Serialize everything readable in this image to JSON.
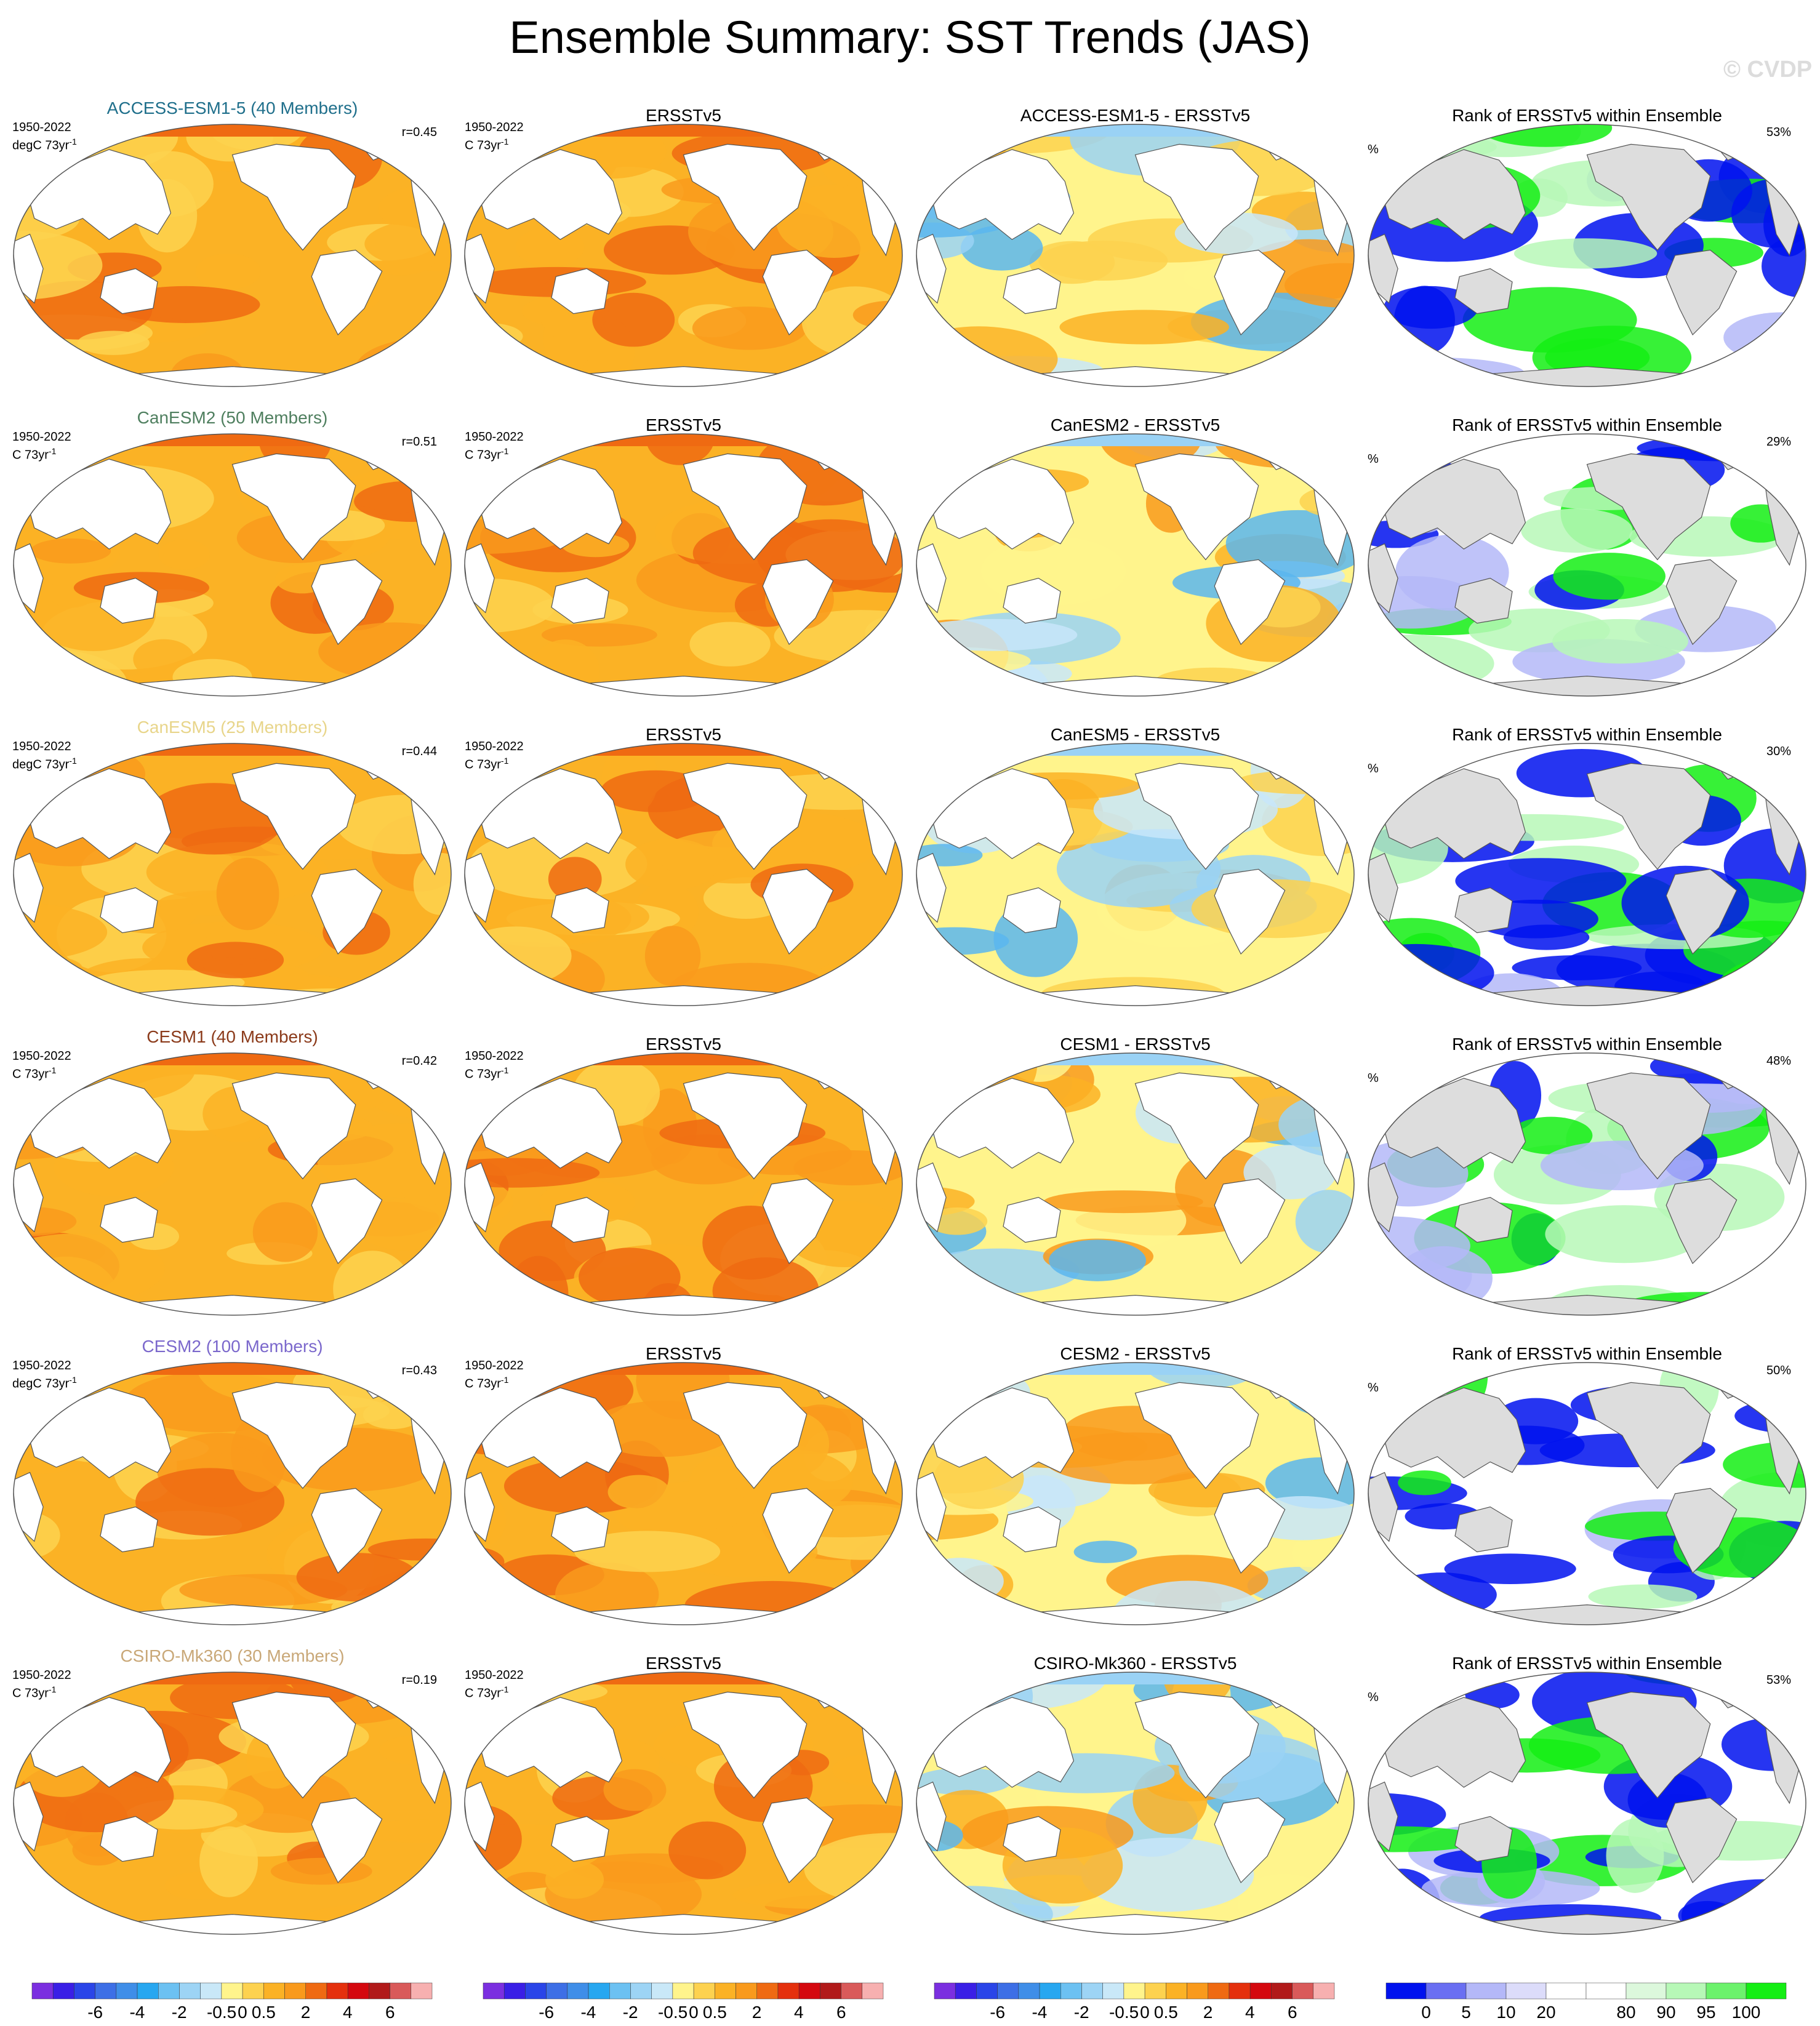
{
  "title": "Ensemble Summary: SST Trends (JAS)",
  "watermark": "© CVDP",
  "colors": {
    "model_warm": [
      "#fff48c",
      "#fdd24f",
      "#fbb225",
      "#f99a1c",
      "#ef6a12",
      "#e4300d",
      "#c6141a"
    ],
    "cool": [
      "#c8e6fa",
      "#9ad2f5",
      "#5ab6ee"
    ],
    "rank_blue": "#0012ee",
    "rank_lightblue": "#b4b8f8",
    "rank_green": "#14ee14",
    "rank_lightgreen": "#b7f8b7",
    "land_rank": "#dddddd"
  },
  "rows": [
    {
      "model_title": "ACCESS-ESM1-5 (40 Members)",
      "model_title_color": "#1f6f8b",
      "period": "1950-2022",
      "units": "degC 73yr",
      "r": "r=0.45",
      "obs_title": "ERSSTv5",
      "obs_period": "1950-2022",
      "obs_units": "C 73yr",
      "diff_title": "ACCESS-ESM1-5 - ERSSTv5",
      "rank_title": "Rank of ERSSTv5 within Ensemble",
      "rank_pct": "53%",
      "rank_unit": "%"
    },
    {
      "model_title": "CanESM2 (50 Members)",
      "model_title_color": "#4f7f5f",
      "period": "1950-2022",
      "units": "C 73yr",
      "r": "r=0.51",
      "obs_title": "ERSSTv5",
      "obs_period": "1950-2022",
      "obs_units": "C 73yr",
      "diff_title": "CanESM2 - ERSSTv5",
      "rank_title": "Rank of ERSSTv5 within Ensemble",
      "rank_pct": "29%",
      "rank_unit": "%"
    },
    {
      "model_title": "CanESM5 (25 Members)",
      "model_title_color": "#e8d58a",
      "period": "1950-2022",
      "units": "degC 73yr",
      "r": "r=0.44",
      "obs_title": "ERSSTv5",
      "obs_period": "1950-2022",
      "obs_units": "C 73yr",
      "diff_title": "CanESM5 - ERSSTv5",
      "rank_title": "Rank of ERSSTv5 within Ensemble",
      "rank_pct": "30%",
      "rank_unit": "%"
    },
    {
      "model_title": "CESM1 (40 Members)",
      "model_title_color": "#8b3a1a",
      "period": "1950-2022",
      "units": "C 73yr",
      "r": "r=0.42",
      "obs_title": "ERSSTv5",
      "obs_period": "1950-2022",
      "obs_units": "C 73yr",
      "diff_title": "CESM1 - ERSSTv5",
      "rank_title": "Rank of ERSSTv5 within Ensemble",
      "rank_pct": "48%",
      "rank_unit": "%"
    },
    {
      "model_title": "CESM2 (100 Members)",
      "model_title_color": "#7b68cc",
      "period": "1950-2022",
      "units": "degC 73yr",
      "r": "r=0.43",
      "obs_title": "ERSSTv5",
      "obs_period": "1950-2022",
      "obs_units": "C 73yr",
      "diff_title": "CESM2 - ERSSTv5",
      "rank_title": "Rank of ERSSTv5 within Ensemble",
      "rank_pct": "50%",
      "rank_unit": "%"
    },
    {
      "model_title": "CSIRO-Mk360 (30 Members)",
      "model_title_color": "#c9a878",
      "period": "1950-2022",
      "units": "C 73yr",
      "r": "r=0.19",
      "obs_title": "ERSSTv5",
      "obs_period": "1950-2022",
      "obs_units": "C 73yr",
      "diff_title": "CSIRO-Mk360 - ERSSTv5",
      "rank_title": "Rank of ERSSTv5 within Ensemble",
      "rank_pct": "53%",
      "rank_unit": "%"
    }
  ],
  "unit_superscript": "-1",
  "colorbars": {
    "trend_colors": [
      "#7b2fe0",
      "#3a1fe6",
      "#2a45e8",
      "#3d6fe6",
      "#3f8ee8",
      "#27a7f0",
      "#6cc1f2",
      "#9dd4f5",
      "#c9e8f8",
      "#fff48c",
      "#fdd24f",
      "#fbb225",
      "#f99a1c",
      "#ef6a12",
      "#e4300d",
      "#d4080f",
      "#b11a1a",
      "#d95a5a",
      "#f7b0b0"
    ],
    "trend_labels": [
      "-6",
      "-4",
      "-2",
      "-0.5",
      "0",
      "0.5",
      "2",
      "4",
      "6"
    ],
    "rank_colors": [
      "#0012ee",
      "#6a6ff2",
      "#b4b8f8",
      "#dcdcfa",
      "#ffffff",
      "#ffffff",
      "#dcf8dc",
      "#b7f8b7",
      "#6cf26c",
      "#14ee14"
    ],
    "rank_labels": [
      "0",
      "5",
      "10",
      "20",
      "80",
      "90",
      "95",
      "100"
    ]
  }
}
